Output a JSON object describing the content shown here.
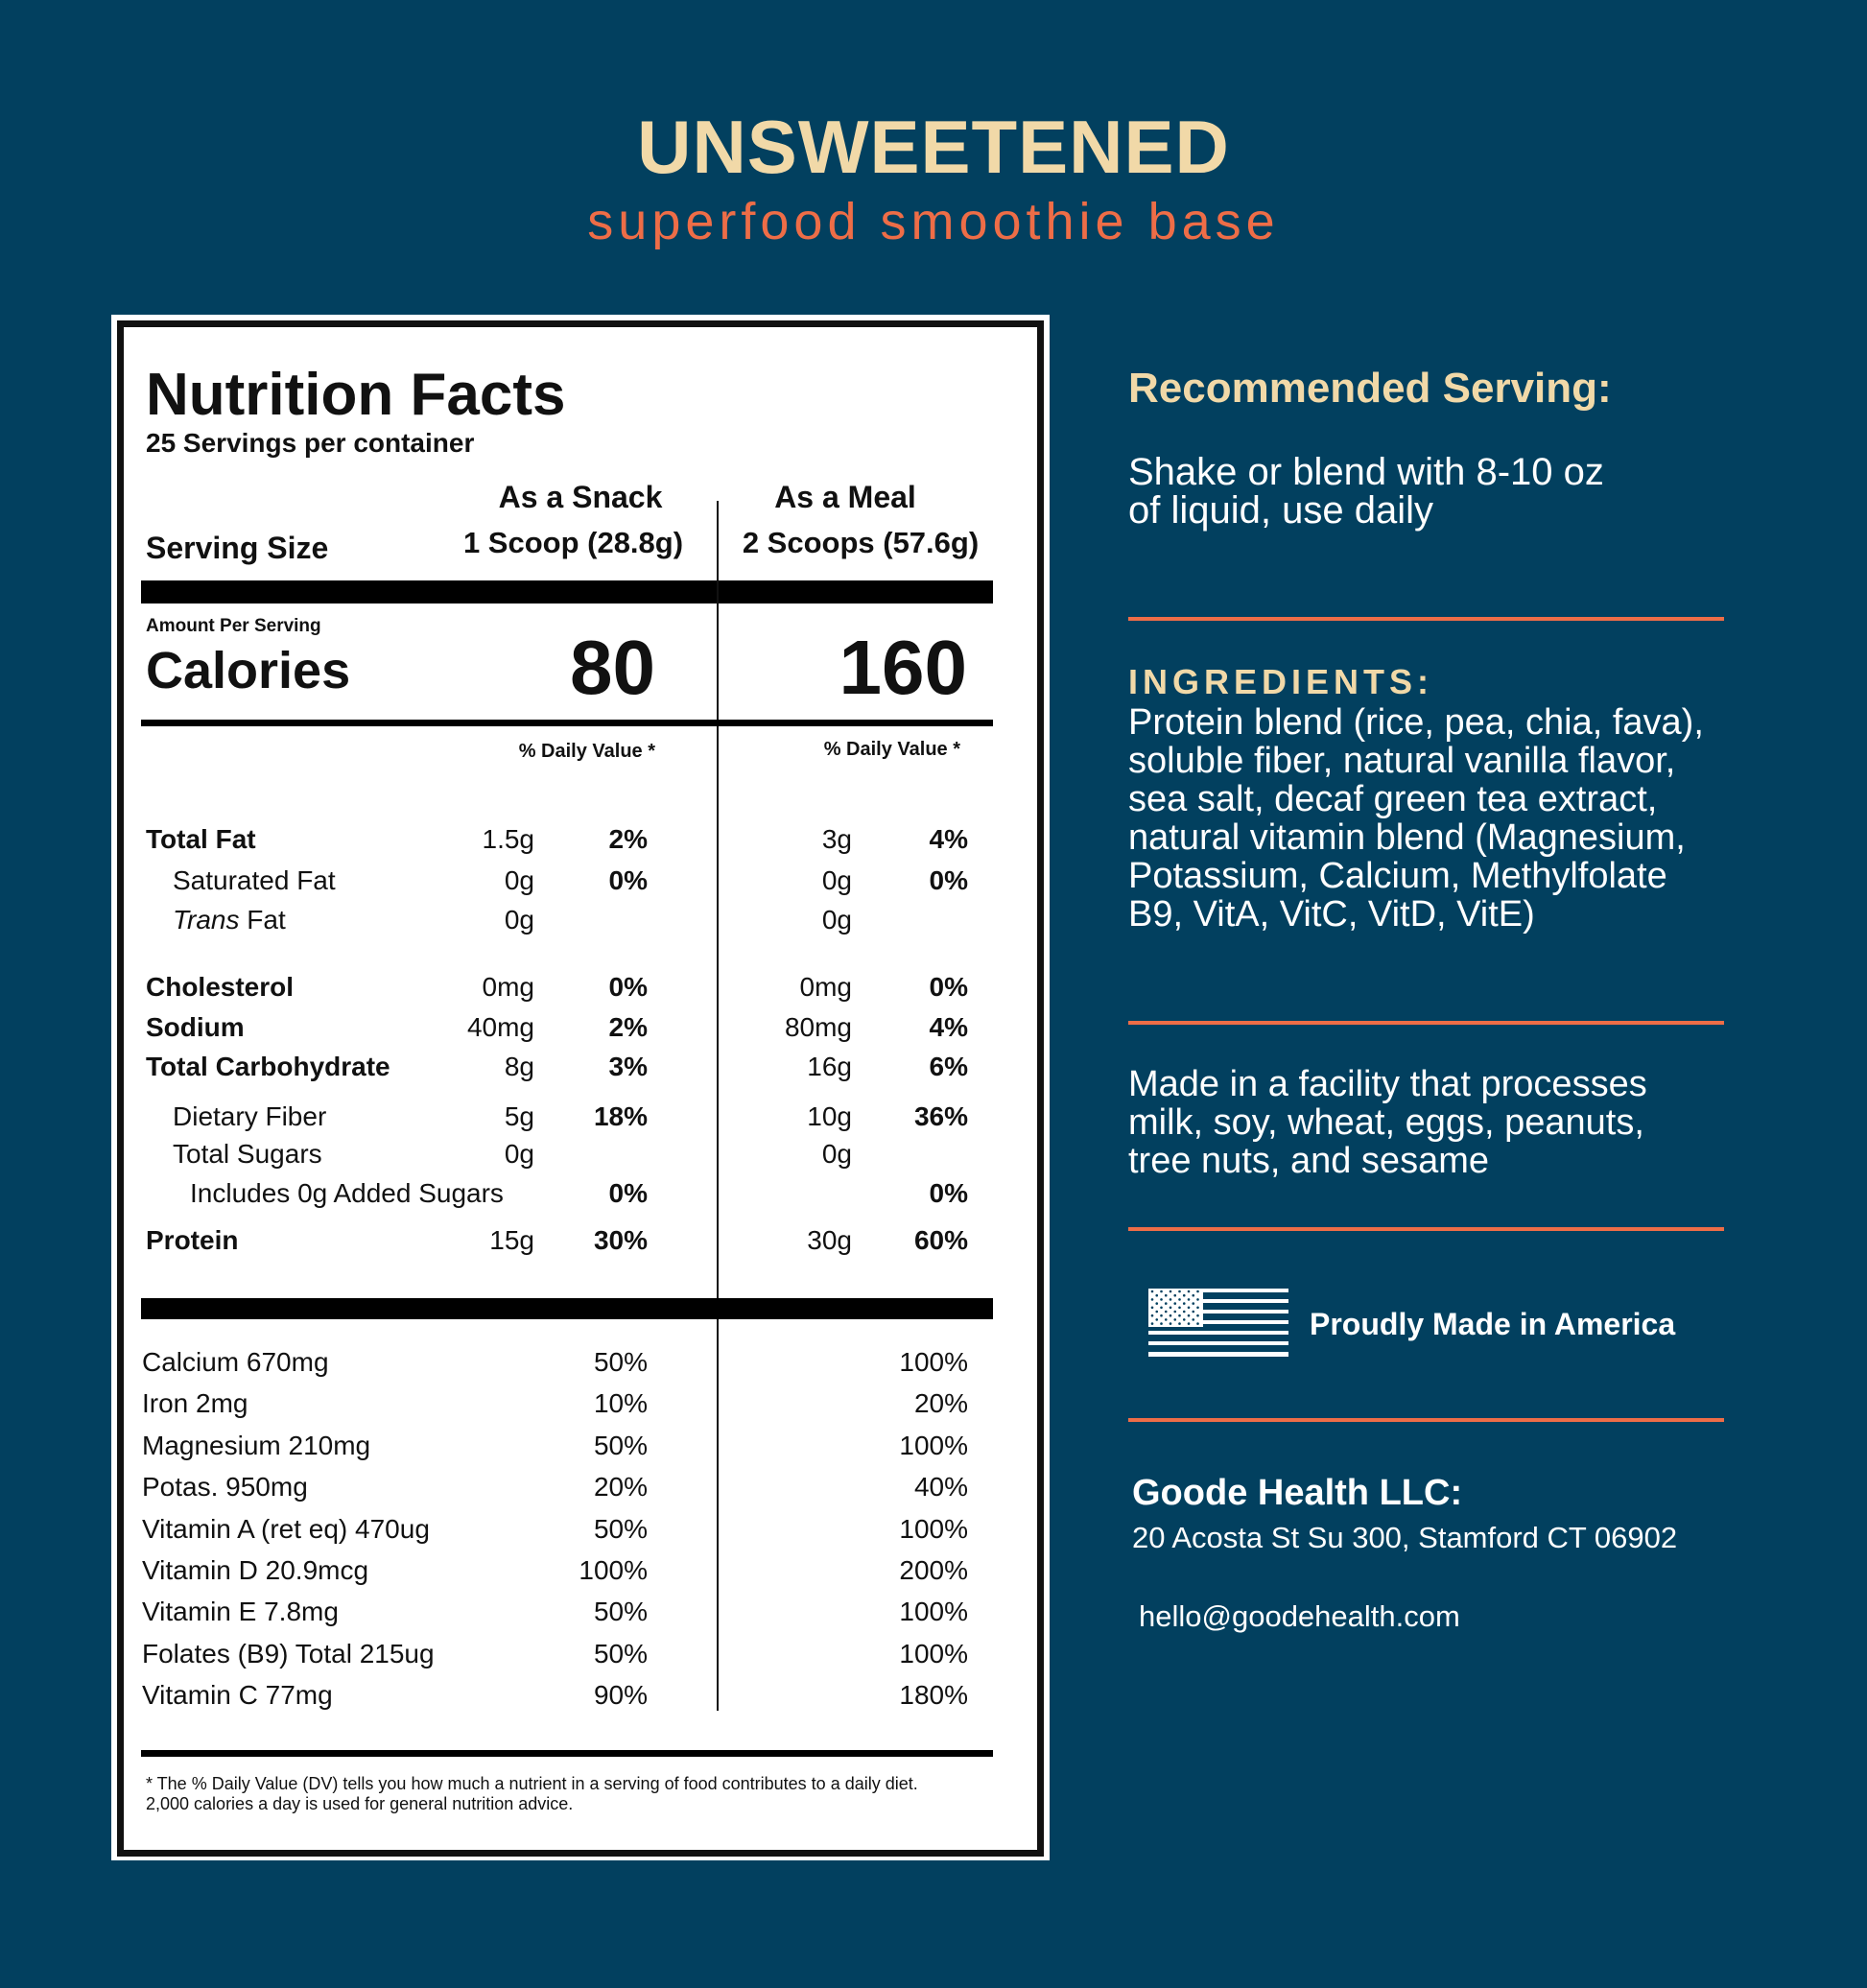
{
  "header": {
    "title": "UNSWEETENED",
    "subtitle": "superfood smoothie base"
  },
  "label": {
    "title": "Nutrition Facts",
    "servings": "25 Servings per container",
    "col_snack": "As a Snack",
    "col_meal": "As a Meal",
    "serving_size_label": "Serving Size",
    "snack_size": "1 Scoop (28.8g)",
    "meal_size": "2 Scoops (57.6g)",
    "amount_per_serving": "Amount Per Serving",
    "calories_label": "Calories",
    "snack_calories": "80",
    "meal_calories": "160",
    "dv_header": "% Daily Value *",
    "nutrients": [
      {
        "name": "Total Fat",
        "bold": true,
        "indent": 0,
        "snack_amt": "1.5g",
        "snack_dv": "2%",
        "meal_amt": "3g",
        "meal_dv": "4%"
      },
      {
        "name": "Saturated Fat",
        "bold": false,
        "indent": 1,
        "snack_amt": "0g",
        "snack_dv": "0%",
        "meal_amt": "0g",
        "meal_dv": "0%"
      },
      {
        "name": "Trans Fat",
        "italic_prefix": "Trans",
        "bold": false,
        "indent": 1,
        "snack_amt": "0g",
        "snack_dv": "",
        "meal_amt": "0g",
        "meal_dv": ""
      },
      {
        "name": "Cholesterol",
        "bold": true,
        "indent": 0,
        "snack_amt": "0mg",
        "snack_dv": "0%",
        "meal_amt": "0mg",
        "meal_dv": "0%"
      },
      {
        "name": "Sodium",
        "bold": true,
        "indent": 0,
        "snack_amt": "40mg",
        "snack_dv": "2%",
        "meal_amt": "80mg",
        "meal_dv": "4%"
      },
      {
        "name": "Total Carbohydrate",
        "bold": true,
        "indent": 0,
        "snack_amt": "8g",
        "snack_dv": "3%",
        "meal_amt": "16g",
        "meal_dv": "6%"
      },
      {
        "name": "Dietary Fiber",
        "bold": false,
        "indent": 1,
        "snack_amt": "5g",
        "snack_dv": "18%",
        "meal_amt": "10g",
        "meal_dv": "36%"
      },
      {
        "name": "Total Sugars",
        "bold": false,
        "indent": 1,
        "snack_amt": "0g",
        "snack_dv": "",
        "meal_amt": "0g",
        "meal_dv": ""
      },
      {
        "name": "Includes 0g Added Sugars",
        "bold": false,
        "indent": 2,
        "snack_amt": "",
        "snack_dv": "0%",
        "meal_amt": "",
        "meal_dv": "0%"
      },
      {
        "name": "Protein",
        "bold": true,
        "indent": 0,
        "snack_amt": "15g",
        "snack_dv": "30%",
        "meal_amt": "30g",
        "meal_dv": "60%"
      }
    ],
    "vitamins": [
      {
        "name": "Calcium 670mg",
        "snack_dv": "50%",
        "meal_dv": "100%"
      },
      {
        "name": "Iron 2mg",
        "snack_dv": "10%",
        "meal_dv": "20%"
      },
      {
        "name": "Magnesium 210mg",
        "snack_dv": "50%",
        "meal_dv": "100%"
      },
      {
        "name": "Potas. 950mg",
        "snack_dv": "20%",
        "meal_dv": "40%"
      },
      {
        "name": "Vitamin A (ret eq) 470ug",
        "snack_dv": "50%",
        "meal_dv": "100%"
      },
      {
        "name": "Vitamin D 20.9mcg",
        "snack_dv": "100%",
        "meal_dv": "200%"
      },
      {
        "name": "Vitamin E 7.8mg",
        "snack_dv": "50%",
        "meal_dv": "100%"
      },
      {
        "name": "Folates (B9) Total 215ug",
        "snack_dv": "50%",
        "meal_dv": "100%"
      },
      {
        "name": "Vitamin C 77mg",
        "snack_dv": "90%",
        "meal_dv": "180%"
      }
    ],
    "footnote_1": "* The % Daily Value (DV) tells you how much a nutrient in a serving of food contributes to a daily diet.",
    "footnote_2": "2,000 calories a day is used for general nutrition advice."
  },
  "side": {
    "serving_heading": "Recommended Serving:",
    "serving_lines": [
      "Shake or blend with 8-10 oz",
      "of liquid, use daily"
    ],
    "ingredients_heading": "INGREDIENTS:",
    "ingredients_lines": [
      "Protein blend (rice, pea, chia, fava),",
      "soluble fiber, natural vanilla flavor,",
      "sea salt, decaf green tea extract,",
      "natural vitamin blend (Magnesium,",
      "Potassium, Calcium, Methylfolate",
      "B9, VitA,  VitC, VitD, VitE)"
    ],
    "allergen_lines": [
      "Made in a facility that processes",
      "milk, soy, wheat, eggs, peanuts,",
      "tree nuts, and sesame"
    ],
    "made_in": "Proudly Made in America",
    "flag_icon": "us-flag-icon",
    "company": "Goode Health LLC:",
    "address": "20 Acosta St Su 300, Stamford CT 06902",
    "email": "hello@goodehealth.com"
  },
  "colors": {
    "background": "#02405f",
    "title": "#f1d9a8",
    "accent": "#ee6d47"
  }
}
